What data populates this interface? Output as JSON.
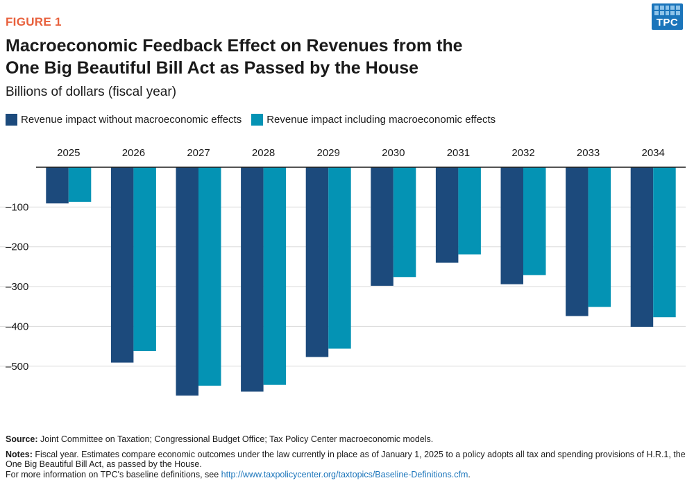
{
  "figure_label": "FIGURE 1",
  "title_line1": "Macroeconomic Feedback Effect on Revenues from the",
  "title_line2": "One Big Beautiful Bill Act as Passed by the House",
  "subtitle": "Billions of dollars (fiscal year)",
  "logo_text": "TPC",
  "colors": {
    "series1": "#1c4a7c",
    "series2": "#0493b4",
    "accent": "#e8603c",
    "link": "#1b75bb"
  },
  "chart_data": {
    "type": "bar",
    "title": "Macroeconomic Feedback Effect on Revenues from the One Big Beautiful Bill Act as Passed by the House",
    "ylabel": "Billions of dollars (fiscal year)",
    "xlabel": "",
    "categories": [
      "2025",
      "2026",
      "2027",
      "2028",
      "2029",
      "2030",
      "2031",
      "2032",
      "2033",
      "2034"
    ],
    "series": [
      {
        "name": "Revenue impact without macroeconomic effects",
        "values": [
          -91,
          -491,
          -574,
          -564,
          -477,
          -298,
          -240,
          -294,
          -374,
          -401
        ]
      },
      {
        "name": "Revenue impact including macroeconomic effects",
        "values": [
          -87,
          -462,
          -549,
          -547,
          -456,
          -276,
          -219,
          -271,
          -351,
          -377
        ]
      }
    ],
    "yticks": [
      0,
      -100,
      -200,
      -300,
      -400,
      -500
    ],
    "ytick_labels": [
      "",
      "–100",
      "–200",
      "–300",
      "–400",
      "–500"
    ],
    "ylim": [
      -600,
      0
    ],
    "grid": true,
    "legend_position": "top-left"
  },
  "footer": {
    "source_label": "Source:",
    "source_text": "Joint Committee on Taxation; Congressional Budget Office; Tax Policy Center macroeconomic models.",
    "notes_label": "Notes:",
    "notes_text": "Fiscal year. Estimates compare economic outcomes under the law currently in place as of January 1, 2025 to a policy adopts all tax and spending provisions of H.R.1, the One Big Beautiful Bill Act, as passed by the House.",
    "more_info_text": "For more information on TPC's baseline definitions, see",
    "link_text": "http://www.taxpolicycenter.org/taxtopics/Baseline-Definitions.cfm",
    "period": "."
  }
}
